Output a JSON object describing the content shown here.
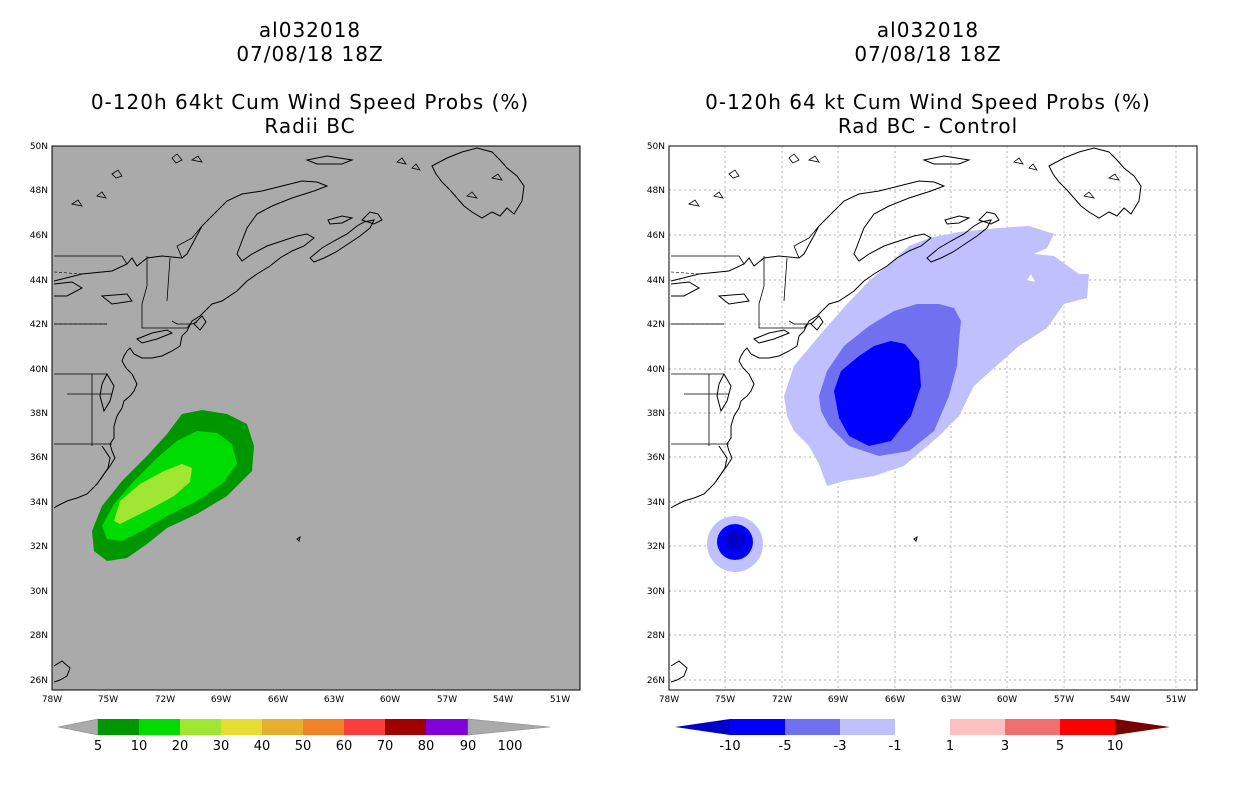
{
  "panels": [
    {
      "id": "left",
      "storm_id": "al032018",
      "datetime": "07/08/18 18Z",
      "product": "0-120h 64kt Cum Wind Speed Probs (%)",
      "subtitle": "Radii BC",
      "background_color": "#aaaaaa",
      "colorbar": {
        "labels": [
          "5",
          "10",
          "20",
          "30",
          "40",
          "50",
          "60",
          "70",
          "80",
          "90",
          "100"
        ],
        "colors": [
          "#009600",
          "#00dc00",
          "#a0e632",
          "#e6dc32",
          "#e6af2d",
          "#f08228",
          "#fa3c3c",
          "#a00000",
          "#8200dc"
        ]
      }
    },
    {
      "id": "right",
      "storm_id": "al032018",
      "datetime": "07/08/18 18Z",
      "product": "0-120h 64 kt Cum Wind Speed Probs (%)",
      "subtitle": "Rad BC - Control",
      "background_color": "#ffffff",
      "colorbar": {
        "labels": [
          "-10",
          "-5",
          "-3",
          "-1",
          "1",
          "3",
          "5",
          "10"
        ],
        "colors": [
          "#0000c8",
          "#0000ff",
          "#7070f0",
          "#c0c0ff",
          "#ffffff",
          "#ffc0c0",
          "#f07070",
          "#ff0000"
        ]
      }
    }
  ],
  "axes": {
    "lat_labels": [
      "50N",
      "48N",
      "46N",
      "44N",
      "42N",
      "40N",
      "38N",
      "36N",
      "34N",
      "32N",
      "30N",
      "28N",
      "26N"
    ],
    "lon_labels": [
      "78W",
      "75W",
      "72W",
      "69W",
      "66W",
      "63W",
      "60W",
      "57W",
      "54W",
      "51W"
    ]
  }
}
